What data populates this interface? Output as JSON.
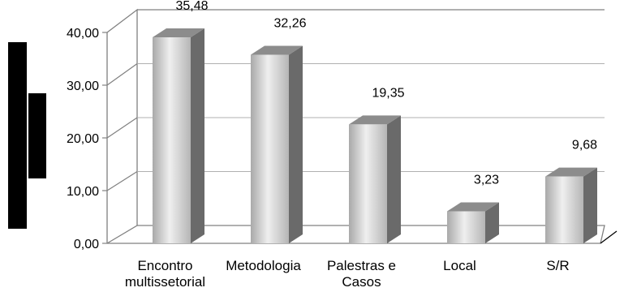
{
  "chart_data": {
    "type": "bar",
    "categories": [
      "Encontro multissetorial",
      "Metodologia",
      "Palestras e Casos",
      "Local",
      "S/R"
    ],
    "category_lines": [
      [
        "Encontro",
        "multissetorial"
      ],
      [
        "Metodologia"
      ],
      [
        "Palestras e",
        "Casos"
      ],
      [
        "Local"
      ],
      [
        "S/R"
      ]
    ],
    "values": [
      35.48,
      32.26,
      19.35,
      3.23,
      9.68
    ],
    "value_labels": [
      "35,48",
      "32,26",
      "19,35",
      "3,23",
      "9,68"
    ],
    "ylim": [
      0,
      40
    ],
    "y_ticks": [
      "0,00",
      "10,00",
      "20,00",
      "30,00",
      "40,00"
    ],
    "grid": true,
    "title": "",
    "xlabel": "",
    "ylabel": ""
  }
}
